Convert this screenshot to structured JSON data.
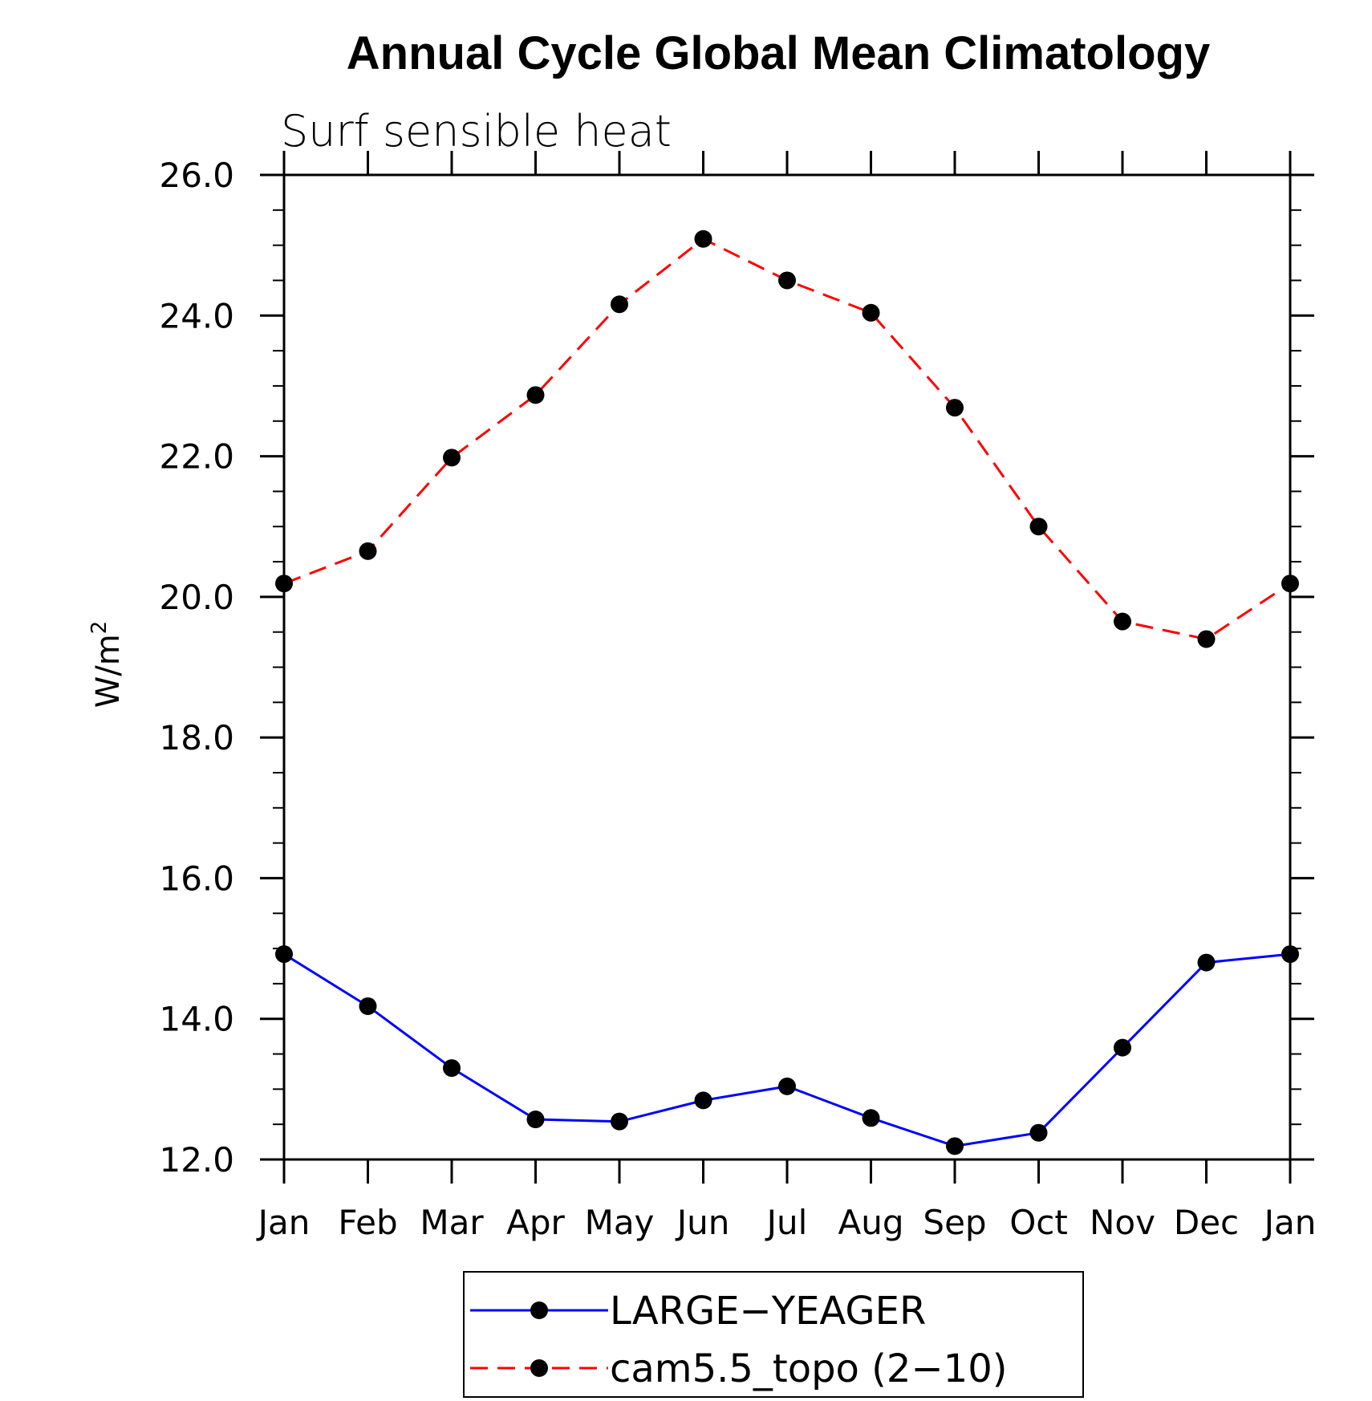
{
  "chart_data": {
    "type": "line",
    "title": "Annual Cycle Global Mean Climatology",
    "subtitle": "Surf sensible heat",
    "ylabel": "W/m",
    "ylabel_sup": "2",
    "xlabel": "",
    "categories": [
      "Jan",
      "Feb",
      "Mar",
      "Apr",
      "May",
      "Jun",
      "Jul",
      "Aug",
      "Sep",
      "Oct",
      "Nov",
      "Dec",
      "Jan"
    ],
    "ylim": [
      12.0,
      26.0
    ],
    "yticks": [
      "12.0",
      "14.0",
      "16.0",
      "18.0",
      "20.0",
      "22.0",
      "24.0",
      "26.0"
    ],
    "grid": false,
    "legend_position": "bottom",
    "series": [
      {
        "name": "LARGE−YEAGER",
        "color": "#0000ff",
        "style": "solid",
        "marker": "filled-circle",
        "values": [
          14.92,
          14.18,
          13.3,
          12.57,
          12.54,
          12.84,
          13.04,
          12.59,
          12.19,
          12.38,
          13.59,
          14.8,
          14.92
        ]
      },
      {
        "name": "cam5.5_topo (2−10)",
        "color": "#ff0000",
        "style": "dashed",
        "marker": "filled-circle",
        "values": [
          20.19,
          20.65,
          21.98,
          22.87,
          24.16,
          25.09,
          24.5,
          24.04,
          22.69,
          21.0,
          19.65,
          19.4,
          20.19
        ]
      }
    ]
  }
}
